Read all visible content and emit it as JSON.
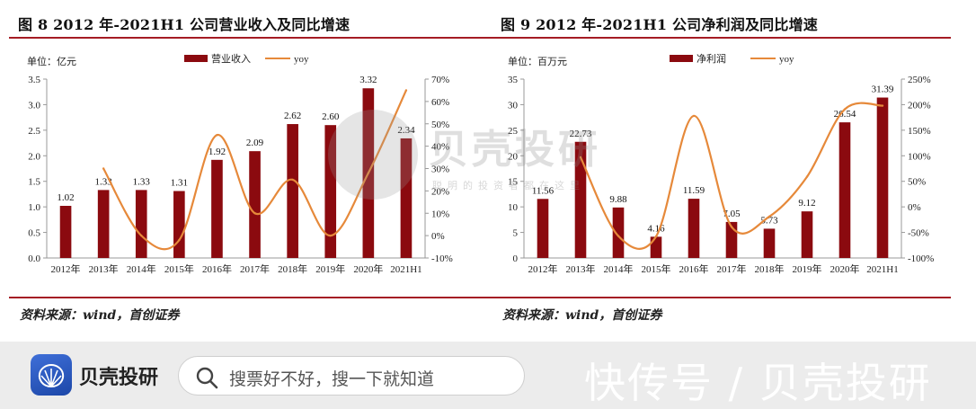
{
  "left": {
    "title": "图  8 2012 年-2021H1 公司营业收入及同比增速",
    "source": "资料来源：wind，首创证券"
  },
  "right": {
    "title": "图  9 2012 年-2021H1 公司净利润及同比增速",
    "source": "资料来源：wind，首创证券"
  },
  "chart_data": [
    {
      "type": "bar",
      "title": "图  8 2012 年-2021H1 公司营业收入及同比增速",
      "unit_label": "单位：亿元",
      "categories": [
        "2012年",
        "2013年",
        "2014年",
        "2015年",
        "2016年",
        "2017年",
        "2018年",
        "2019年",
        "2020年",
        "2021H1"
      ],
      "series": [
        {
          "name": "营业收入",
          "type": "bar",
          "axis": "left",
          "values": [
            1.02,
            1.33,
            1.33,
            1.31,
            1.92,
            2.09,
            2.62,
            2.6,
            3.32,
            2.34
          ],
          "labels": [
            "1.02",
            "1.33",
            "1.33",
            "1.31",
            "1.92",
            "2.09",
            "2.62",
            "2.60",
            "3.32",
            "2.34"
          ],
          "color": "#8b0a0f"
        },
        {
          "name": "yoy",
          "type": "line",
          "axis": "right",
          "values": [
            null,
            30,
            0,
            -2,
            45,
            10,
            25,
            0,
            28,
            65
          ],
          "color": "#e6893a"
        }
      ],
      "ylim": [
        0,
        3.5
      ],
      "yticks": [
        "0.0",
        "0.5",
        "1.0",
        "1.5",
        "2.0",
        "2.5",
        "3.0",
        "3.5"
      ],
      "y2lim": [
        -10,
        70
      ],
      "y2ticks": [
        "-10%",
        "0%",
        "10%",
        "20%",
        "30%",
        "40%",
        "50%",
        "60%",
        "70%"
      ],
      "legend": "top-center",
      "grid": false
    },
    {
      "type": "bar",
      "title": "图  9 2012 年-2021H1 公司净利润及同比增速",
      "unit_label": "单位：百万元",
      "categories": [
        "2012年",
        "2013年",
        "2014年",
        "2015年",
        "2016年",
        "2017年",
        "2018年",
        "2019年",
        "2020年",
        "2021H1"
      ],
      "series": [
        {
          "name": "净利润",
          "type": "bar",
          "axis": "left",
          "values": [
            11.56,
            22.73,
            9.88,
            4.16,
            11.59,
            7.05,
            5.73,
            9.12,
            26.54,
            31.39
          ],
          "labels": [
            "11.56",
            "22.73",
            "9.88",
            "4.16",
            "11.59",
            "7.05",
            "5.73",
            "9.12",
            "26.54",
            "31.39"
          ],
          "color": "#8b0a0f"
        },
        {
          "name": "yoy",
          "type": "line",
          "axis": "right",
          "values": [
            null,
            97,
            -57,
            -58,
            178,
            -39,
            -19,
            59,
            191,
            198
          ],
          "color": "#e6893a"
        }
      ],
      "ylim": [
        0,
        35
      ],
      "yticks": [
        "0",
        "5",
        "10",
        "15",
        "20",
        "25",
        "30",
        "35"
      ],
      "y2lim": [
        -100,
        250
      ],
      "y2ticks": [
        "-100%",
        "-50%",
        "0%",
        "50%",
        "100%",
        "150%",
        "200%",
        "250%"
      ],
      "legend": "top-center",
      "grid": false
    }
  ],
  "watermark": {
    "brand": "贝壳投研",
    "tagline": "聪明的投资者都在这里"
  },
  "bottom_bar": {
    "brand": "贝壳投研",
    "search_placeholder": "搜票好不好，搜一下就知道",
    "watermark_text": "快传号 / 贝壳投研"
  }
}
